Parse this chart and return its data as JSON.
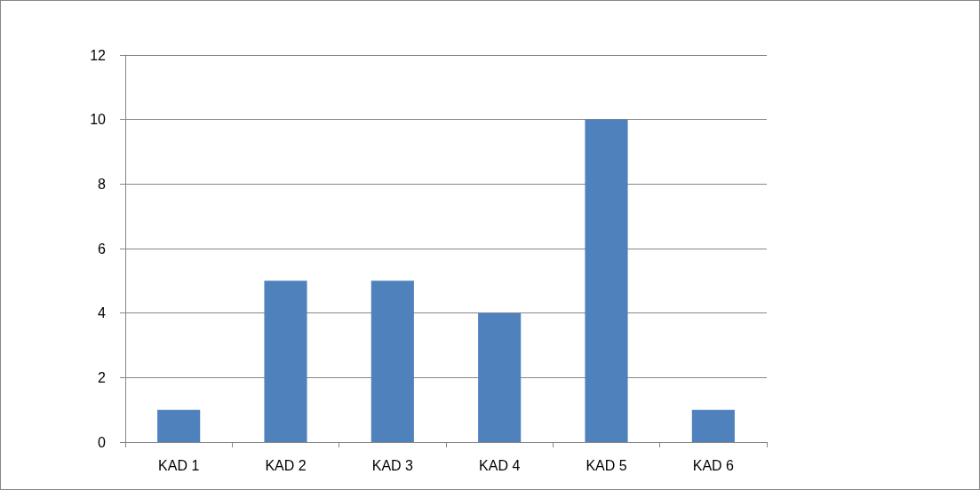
{
  "chart_data": {
    "type": "bar",
    "categories": [
      "KAD 1",
      "KAD 2",
      "KAD 3",
      "KAD 4",
      "KAD 5",
      "KAD 6"
    ],
    "values": [
      1,
      5,
      5,
      4,
      10,
      1
    ],
    "color": "#4f81bd",
    "ylim": [
      0,
      12
    ],
    "yticks": [
      0,
      2,
      4,
      6,
      8,
      10,
      12
    ],
    "grid": "y"
  }
}
